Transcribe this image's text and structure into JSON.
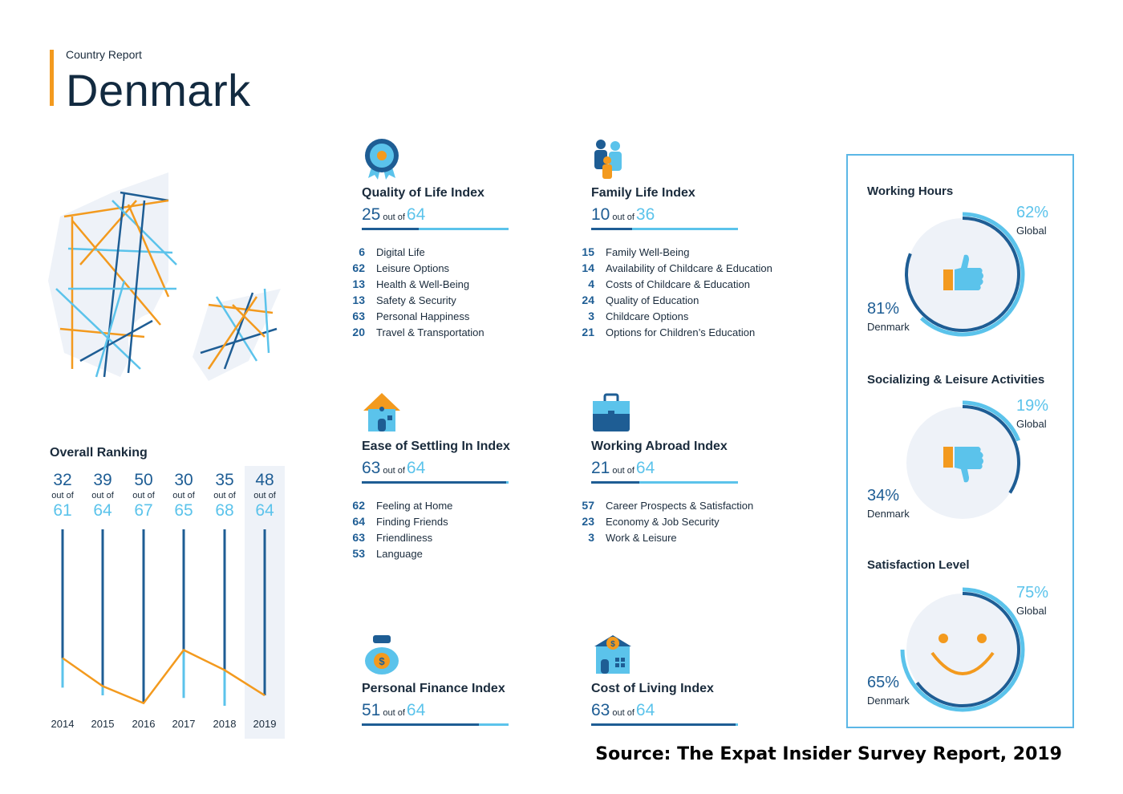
{
  "header": {
    "subtitle": "Country Report",
    "title": "Denmark"
  },
  "colors": {
    "dark_blue": "#1e5d94",
    "light_blue": "#5bc3eb",
    "orange": "#f39a1e",
    "panel_border": "#5bb7e6"
  },
  "overall_ranking": {
    "title": "Overall Ranking",
    "out_of_label": "out of",
    "years": [
      {
        "year": "2014",
        "rank": "32",
        "total": "61"
      },
      {
        "year": "2015",
        "rank": "39",
        "total": "64"
      },
      {
        "year": "2016",
        "rank": "50",
        "total": "67"
      },
      {
        "year": "2017",
        "rank": "30",
        "total": "65"
      },
      {
        "year": "2018",
        "rank": "35",
        "total": "68"
      },
      {
        "year": "2019",
        "rank": "48",
        "total": "64"
      }
    ],
    "highlighted_year": "2019"
  },
  "indices": [
    {
      "icon": "award-ribbon-icon",
      "title": "Quality of Life Index",
      "rank": "25",
      "out_of": "out of",
      "total": "64",
      "items": [
        {
          "rank": "6",
          "label": "Digital Life"
        },
        {
          "rank": "62",
          "label": "Leisure Options"
        },
        {
          "rank": "13",
          "label": "Health & Well-Being"
        },
        {
          "rank": "13",
          "label": "Safety & Security"
        },
        {
          "rank": "63",
          "label": "Personal Happiness"
        },
        {
          "rank": "20",
          "label": "Travel & Transportation"
        }
      ]
    },
    {
      "icon": "family-icon",
      "title": "Family Life Index",
      "rank": "10",
      "out_of": "out of",
      "total": "36",
      "items": [
        {
          "rank": "15",
          "label": "Family Well-Being"
        },
        {
          "rank": "14",
          "label": "Availability of Childcare & Education"
        },
        {
          "rank": "4",
          "label": "Costs of Childcare & Education"
        },
        {
          "rank": "24",
          "label": "Quality of Education"
        },
        {
          "rank": "3",
          "label": "Childcare Options"
        },
        {
          "rank": "21",
          "label": "Options for Children’s Education"
        }
      ]
    },
    {
      "icon": "house-icon",
      "title": "Ease of Settling In Index",
      "rank": "63",
      "out_of": "out of",
      "total": "64",
      "items": [
        {
          "rank": "62",
          "label": "Feeling at Home"
        },
        {
          "rank": "64",
          "label": "Finding Friends"
        },
        {
          "rank": "63",
          "label": "Friendliness"
        },
        {
          "rank": "53",
          "label": "Language"
        }
      ]
    },
    {
      "icon": "briefcase-icon",
      "title": "Working Abroad Index",
      "rank": "21",
      "out_of": "out of",
      "total": "64",
      "items": [
        {
          "rank": "57",
          "label": "Career Prospects & Satisfaction"
        },
        {
          "rank": "23",
          "label": "Economy & Job Security"
        },
        {
          "rank": "3",
          "label": "Work & Leisure"
        }
      ]
    },
    {
      "icon": "money-bag-icon",
      "title": "Personal Finance Index",
      "rank": "51",
      "out_of": "out of",
      "total": "64",
      "items": []
    },
    {
      "icon": "cost-house-icon",
      "title": "Cost of Living Index",
      "rank": "63",
      "out_of": "out of",
      "total": "64",
      "items": []
    }
  ],
  "panel": {
    "sections": [
      {
        "title": "Working Hours",
        "icon": "thumbs-up-icon",
        "global_pct": "62%",
        "global_label": "Global",
        "denmark_pct": "81%",
        "denmark_label": "Denmark",
        "global_value": 0.62,
        "denmark_value": 0.81
      },
      {
        "title": "Socializing & Leisure Activities",
        "icon": "thumbs-down-icon",
        "global_pct": "19%",
        "global_label": "Global",
        "denmark_pct": "34%",
        "denmark_label": "Denmark",
        "global_value": 0.19,
        "denmark_value": 0.34
      },
      {
        "title": "Satisfaction Level",
        "icon": "smiley-face-icon",
        "global_pct": "75%",
        "global_label": "Global",
        "denmark_pct": "65%",
        "denmark_label": "Denmark",
        "global_value": 0.75,
        "denmark_value": 0.65
      }
    ]
  },
  "source": "Source: The Expat Insider Survey Report, 2019"
}
